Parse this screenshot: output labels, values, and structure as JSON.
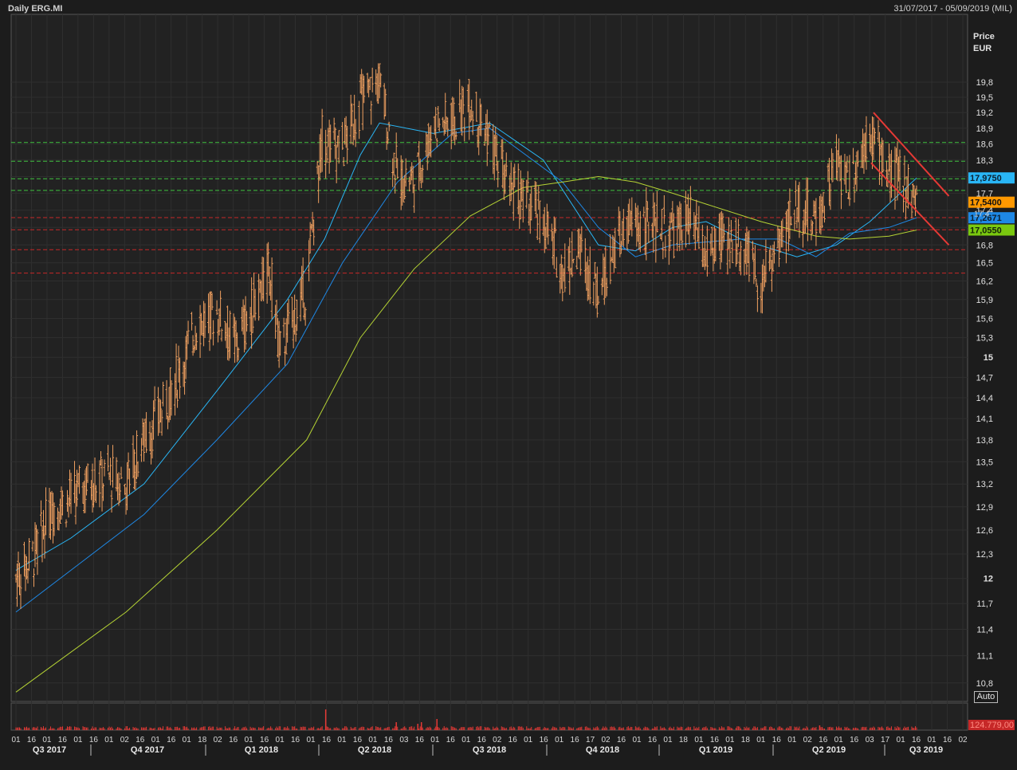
{
  "header": {
    "title": "Daily ERG.MI",
    "date_range": "31/07/2017 - 05/09/2019 (MIL)"
  },
  "axis": {
    "price_label": "Price",
    "currency_label": "EUR",
    "auto_button": "Auto"
  },
  "chart_data": {
    "type": "line",
    "instrument": "ERG.MI",
    "interval": "Daily",
    "price_scale": "log",
    "ylim": [
      10.6,
      21.2
    ],
    "y_ticks": [
      "10,8",
      "11,1",
      "11,4",
      "11,7",
      "12",
      "12,3",
      "12,6",
      "12,9",
      "13,2",
      "13,5",
      "13,8",
      "14,1",
      "14,4",
      "14,7",
      "15",
      "15,3",
      "15,6",
      "15,9",
      "16,2",
      "16,5",
      "16,8",
      "17,1",
      "17,4",
      "17,7",
      "18",
      "18,3",
      "18,6",
      "18,9",
      "19,2",
      "19,5",
      "19,8"
    ],
    "x_day_ticks": [
      "01",
      "16",
      "01",
      "16",
      "01",
      "16",
      "01",
      "02",
      "16",
      "01",
      "16",
      "01",
      "18",
      "02",
      "16",
      "01",
      "16",
      "01",
      "16",
      "01",
      "16",
      "01",
      "16",
      "01",
      "16",
      "03",
      "16",
      "01",
      "16",
      "01",
      "16",
      "02",
      "16",
      "01",
      "16",
      "01",
      "16",
      "17",
      "02",
      "16",
      "01",
      "16",
      "01",
      "18",
      "01",
      "16",
      "01",
      "18",
      "01",
      "16",
      "01",
      "02",
      "16",
      "01",
      "16",
      "03",
      "17",
      "01",
      "16",
      "01",
      "16",
      "02"
    ],
    "x_quarters": [
      "Q3 2017",
      "Q4 2017",
      "Q1 2018",
      "Q2 2018",
      "Q3 2018",
      "Q4 2018",
      "Q1 2019",
      "Q2 2019",
      "Q3 2019"
    ],
    "series": [
      {
        "type": "ohlc",
        "color": "#f0a060",
        "days": [
          {
            "d": "2017-07-31",
            "close": 12.0
          },
          {
            "d": "2017-08-15",
            "close": 12.3
          },
          {
            "d": "2017-08-31",
            "close": 12.9
          },
          {
            "d": "2017-09-15",
            "close": 13.0
          },
          {
            "d": "2017-09-29",
            "close": 13.2
          },
          {
            "d": "2017-10-16",
            "close": 13.3
          },
          {
            "d": "2017-10-31",
            "close": 13.2
          },
          {
            "d": "2017-11-15",
            "close": 13.8
          },
          {
            "d": "2017-11-30",
            "close": 14.2
          },
          {
            "d": "2017-12-15",
            "close": 14.8
          },
          {
            "d": "2017-12-29",
            "close": 15.5
          },
          {
            "d": "2018-01-15",
            "close": 15.7
          },
          {
            "d": "2018-01-31",
            "close": 15.2
          },
          {
            "d": "2018-02-15",
            "close": 15.8
          },
          {
            "d": "2018-02-28",
            "close": 16.4
          },
          {
            "d": "2018-03-09",
            "close": 15.1
          },
          {
            "d": "2018-03-31",
            "close": 16.1
          },
          {
            "d": "2018-04-13",
            "close": 18.7
          },
          {
            "d": "2018-04-30",
            "close": 18.5
          },
          {
            "d": "2018-05-15",
            "close": 19.4
          },
          {
            "d": "2018-05-31",
            "close": 19.8
          },
          {
            "d": "2018-06-15",
            "close": 18.0
          },
          {
            "d": "2018-06-29",
            "close": 17.9
          },
          {
            "d": "2018-07-16",
            "close": 19.0
          },
          {
            "d": "2018-07-31",
            "close": 19.0
          },
          {
            "d": "2018-08-15",
            "close": 19.4
          },
          {
            "d": "2018-08-31",
            "close": 18.7
          },
          {
            "d": "2018-09-14",
            "close": 17.9
          },
          {
            "d": "2018-09-28",
            "close": 17.6
          },
          {
            "d": "2018-10-15",
            "close": 17.2
          },
          {
            "d": "2018-10-31",
            "close": 16.4
          },
          {
            "d": "2018-11-15",
            "close": 16.7
          },
          {
            "d": "2018-11-30",
            "close": 16.0
          },
          {
            "d": "2018-12-14",
            "close": 16.8
          },
          {
            "d": "2018-12-31",
            "close": 17.2
          },
          {
            "d": "2019-01-15",
            "close": 17.1
          },
          {
            "d": "2019-01-31",
            "close": 17.0
          },
          {
            "d": "2019-02-15",
            "close": 17.2
          },
          {
            "d": "2019-02-28",
            "close": 16.6
          },
          {
            "d": "2019-03-15",
            "close": 16.9
          },
          {
            "d": "2019-03-29",
            "close": 16.8
          },
          {
            "d": "2019-04-15",
            "close": 16.2
          },
          {
            "d": "2019-04-30",
            "close": 16.8
          },
          {
            "d": "2019-05-15",
            "close": 17.5
          },
          {
            "d": "2019-05-31",
            "close": 17.2
          },
          {
            "d": "2019-06-17",
            "close": 18.2
          },
          {
            "d": "2019-06-28",
            "close": 17.9
          },
          {
            "d": "2019-07-15",
            "close": 18.9
          },
          {
            "d": "2019-07-31",
            "close": 18.0
          },
          {
            "d": "2019-08-15",
            "close": 17.9
          },
          {
            "d": "2019-08-23",
            "close": 17.54
          }
        ]
      },
      {
        "type": "moving_average",
        "color": "#29b6f6",
        "last_value": 17.975,
        "label": "17,9750",
        "points": [
          [
            "2017-07-31",
            12.1
          ],
          [
            "2017-09-15",
            12.5
          ],
          [
            "2017-11-15",
            13.2
          ],
          [
            "2018-01-15",
            14.5
          ],
          [
            "2018-03-15",
            15.9
          ],
          [
            "2018-04-15",
            16.9
          ],
          [
            "2018-05-15",
            18.4
          ],
          [
            "2018-05-31",
            19.0
          ],
          [
            "2018-07-15",
            18.8
          ],
          [
            "2018-08-31",
            19.0
          ],
          [
            "2018-10-15",
            18.3
          ],
          [
            "2018-11-30",
            16.8
          ],
          [
            "2018-12-31",
            16.7
          ],
          [
            "2019-01-31",
            17.1
          ],
          [
            "2019-02-28",
            17.2
          ],
          [
            "2019-03-29",
            16.9
          ],
          [
            "2019-05-15",
            16.6
          ],
          [
            "2019-06-17",
            16.8
          ],
          [
            "2019-07-15",
            17.2
          ],
          [
            "2019-08-23",
            17.975
          ]
        ]
      },
      {
        "type": "moving_average",
        "color": "#1e88e5",
        "last_value": 17.2671,
        "label": "17,2671",
        "points": [
          [
            "2017-07-31",
            11.6
          ],
          [
            "2017-09-15",
            12.1
          ],
          [
            "2017-11-15",
            12.8
          ],
          [
            "2018-01-15",
            13.8
          ],
          [
            "2018-03-15",
            14.9
          ],
          [
            "2018-04-30",
            16.5
          ],
          [
            "2018-06-15",
            17.9
          ],
          [
            "2018-07-31",
            18.8
          ],
          [
            "2018-08-31",
            18.9
          ],
          [
            "2018-10-31",
            17.9
          ],
          [
            "2018-11-30",
            17.1
          ],
          [
            "2018-12-31",
            16.6
          ],
          [
            "2019-01-31",
            16.8
          ],
          [
            "2019-03-29",
            16.9
          ],
          [
            "2019-04-30",
            16.9
          ],
          [
            "2019-05-31",
            16.6
          ],
          [
            "2019-06-28",
            17.0
          ],
          [
            "2019-07-31",
            17.1
          ],
          [
            "2019-08-23",
            17.2671
          ]
        ]
      },
      {
        "type": "moving_average",
        "color": "#b5d334",
        "last_value": 17.055,
        "label": "17,0550",
        "points": [
          [
            "2017-07-31",
            10.7
          ],
          [
            "2017-10-31",
            11.6
          ],
          [
            "2018-01-15",
            12.6
          ],
          [
            "2018-03-31",
            13.8
          ],
          [
            "2018-05-15",
            15.3
          ],
          [
            "2018-06-29",
            16.4
          ],
          [
            "2018-08-15",
            17.3
          ],
          [
            "2018-09-28",
            17.8
          ],
          [
            "2018-10-31",
            17.9
          ],
          [
            "2018-11-30",
            18.0
          ],
          [
            "2018-12-31",
            17.9
          ],
          [
            "2019-01-31",
            17.7
          ],
          [
            "2019-03-01",
            17.5
          ],
          [
            "2019-04-15",
            17.2
          ],
          [
            "2019-05-31",
            16.95
          ],
          [
            "2019-06-28",
            16.9
          ],
          [
            "2019-07-31",
            16.95
          ],
          [
            "2019-08-23",
            17.055
          ]
        ]
      }
    ],
    "levels": [
      {
        "value": 18.63,
        "color": "#3fc13f"
      },
      {
        "value": 18.28,
        "color": "#3fc13f"
      },
      {
        "value": 17.96,
        "color": "#3fc13f"
      },
      {
        "value": 17.75,
        "color": "#3fc13f"
      },
      {
        "value": 17.27,
        "color": "#c62828"
      },
      {
        "value": 17.06,
        "color": "#c62828"
      },
      {
        "value": 16.72,
        "color": "#c62828"
      },
      {
        "value": 16.33,
        "color": "#c62828"
      }
    ],
    "trendlines": [
      {
        "color": "#e53935",
        "from": [
          "2019-07-18",
          19.2
        ],
        "to": [
          "2019-09-19",
          17.65
        ]
      },
      {
        "color": "#e53935",
        "from": [
          "2019-07-16",
          18.25
        ],
        "to": [
          "2019-09-19",
          16.8
        ]
      }
    ],
    "last_price": {
      "value": 17.54,
      "label": "17,5400",
      "color": "#ff9800"
    },
    "price_marker": "17,4",
    "volume": {
      "last_label": "124.779,00",
      "color": "#e53935",
      "spike_dates": [
        "2018-04-16",
        "2018-06-14",
        "2018-07-02",
        "2018-07-05",
        "2018-07-18",
        "2019-06-03"
      ]
    }
  }
}
